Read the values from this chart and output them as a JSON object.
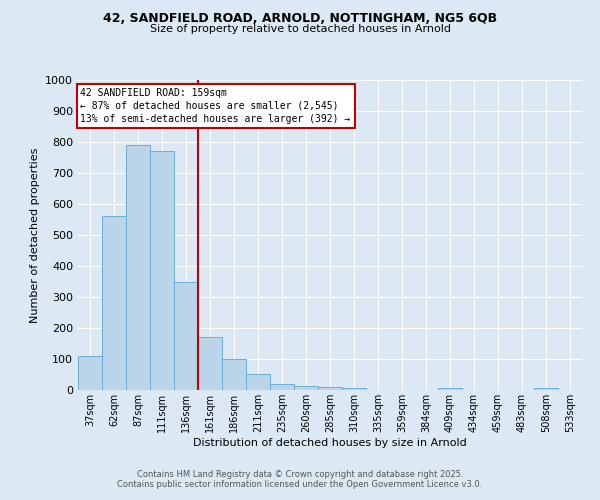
{
  "title1": "42, SANDFIELD ROAD, ARNOLD, NOTTINGHAM, NG5 6QB",
  "title2": "Size of property relative to detached houses in Arnold",
  "xlabel": "Distribution of detached houses by size in Arnold",
  "ylabel": "Number of detached properties",
  "categories": [
    "37sqm",
    "62sqm",
    "87sqm",
    "111sqm",
    "136sqm",
    "161sqm",
    "186sqm",
    "211sqm",
    "235sqm",
    "260sqm",
    "285sqm",
    "310sqm",
    "335sqm",
    "359sqm",
    "384sqm",
    "409sqm",
    "434sqm",
    "459sqm",
    "483sqm",
    "508sqm",
    "533sqm"
  ],
  "values": [
    110,
    560,
    790,
    770,
    350,
    170,
    100,
    52,
    18,
    13,
    10,
    7,
    0,
    0,
    0,
    5,
    0,
    0,
    0,
    7,
    0
  ],
  "bar_color": "#bad4ea",
  "bar_edge_color": "#6aadd5",
  "vline_x": 4.5,
  "vline_color": "#c00000",
  "annotation_text": "42 SANDFIELD ROAD: 159sqm\n← 87% of detached houses are smaller (2,545)\n13% of semi-detached houses are larger (392) →",
  "annotation_box_color": "#ffffff",
  "annotation_box_edge": "#c00000",
  "ylim": [
    0,
    1000
  ],
  "yticks": [
    0,
    100,
    200,
    300,
    400,
    500,
    600,
    700,
    800,
    900,
    1000
  ],
  "footer1": "Contains HM Land Registry data © Crown copyright and database right 2025.",
  "footer2": "Contains public sector information licensed under the Open Government Licence v3.0.",
  "bg_color": "#dce9f5",
  "plot_bg": "#dce9f5",
  "grid_color": "#ffffff",
  "title_color": "#000000",
  "footer_color": "#555555"
}
